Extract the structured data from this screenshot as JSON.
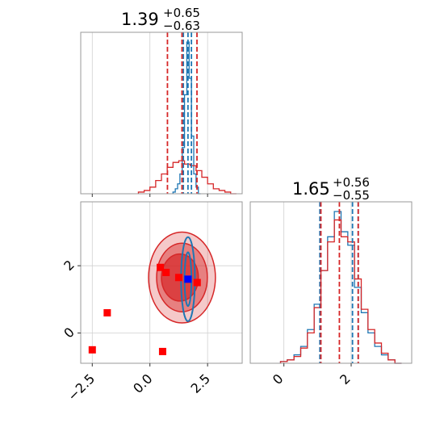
{
  "colors": {
    "blue": "#1f77b4",
    "red": "#d62728",
    "marker_red": "#ff0000",
    "marker_blue": "#0000ff",
    "grid": "#d0d0d0"
  },
  "chart_data": [
    {
      "type": "histogram",
      "panel": "marginal-x",
      "title": {
        "median": "1.39",
        "plus": "+0.65",
        "minus": "−0.63"
      },
      "xlim": [
        -3.0,
        4.0
      ],
      "grid": true,
      "series": [
        {
          "color": "blue",
          "bins_x": [
            1.0,
            1.1,
            1.2,
            1.3,
            1.4,
            1.5,
            1.6,
            1.7,
            1.8,
            1.9,
            2.0,
            2.1
          ],
          "heights": [
            0.01,
            0.03,
            0.06,
            0.12,
            0.28,
            0.6,
            0.92,
            0.7,
            0.35,
            0.12,
            0.04,
            0.0
          ],
          "quantiles": [
            1.45,
            1.65,
            1.8
          ]
        },
        {
          "color": "red",
          "bins_x": [
            -0.5,
            -0.25,
            0.0,
            0.25,
            0.5,
            0.75,
            1.0,
            1.25,
            1.5,
            1.75,
            2.0,
            2.25,
            2.5,
            2.75,
            3.0,
            3.25,
            3.5
          ],
          "heights": [
            0.01,
            0.02,
            0.04,
            0.08,
            0.12,
            0.16,
            0.19,
            0.2,
            0.18,
            0.17,
            0.14,
            0.1,
            0.06,
            0.03,
            0.02,
            0.01,
            0.0
          ],
          "quantiles": [
            0.76,
            1.39,
            2.04
          ]
        }
      ]
    },
    {
      "type": "histogram",
      "panel": "marginal-y",
      "title": {
        "median": "1.65",
        "plus": "+0.56",
        "minus": "−0.55"
      },
      "xlim": [
        -1.0,
        3.8
      ],
      "xticks": [
        "0",
        "2"
      ],
      "grid": true,
      "series": [
        {
          "color": "blue",
          "bins_x": [
            -0.1,
            0.1,
            0.3,
            0.5,
            0.7,
            0.9,
            1.1,
            1.3,
            1.5,
            1.7,
            1.9,
            2.1,
            2.3,
            2.5,
            2.7,
            2.9,
            3.1,
            3.3
          ],
          "heights": [
            0.01,
            0.02,
            0.05,
            0.1,
            0.2,
            0.35,
            0.55,
            0.75,
            0.9,
            0.78,
            0.7,
            0.45,
            0.3,
            0.18,
            0.1,
            0.05,
            0.02,
            0.0
          ],
          "quantiles": [
            1.07,
            2.04,
            2.21
          ]
        },
        {
          "color": "red",
          "bins_x": [
            -0.1,
            0.1,
            0.3,
            0.5,
            0.7,
            0.9,
            1.1,
            1.3,
            1.5,
            1.7,
            1.9,
            2.1,
            2.3,
            2.5,
            2.7,
            2.9,
            3.1,
            3.3
          ],
          "heights": [
            0.01,
            0.02,
            0.04,
            0.09,
            0.18,
            0.33,
            0.55,
            0.72,
            0.85,
            0.75,
            0.72,
            0.5,
            0.32,
            0.2,
            0.12,
            0.06,
            0.02,
            0.0
          ],
          "quantiles": [
            1.1,
            1.65,
            2.21
          ]
        }
      ]
    },
    {
      "type": "scatter",
      "panel": "joint",
      "xlim": [
        -3.0,
        4.0
      ],
      "ylim": [
        -0.9,
        3.9
      ],
      "xticks": [
        "−2.5",
        "0.0",
        "2.5"
      ],
      "yticks": [
        "0",
        "2"
      ],
      "grid": true,
      "red_contours": [
        {
          "level": "outer",
          "cx": 1.39,
          "cy": 1.65,
          "rx": 1.45,
          "ry": 1.35,
          "opacity": 0.25
        },
        {
          "level": "middle",
          "cx": 1.39,
          "cy": 1.65,
          "rx": 1.1,
          "ry": 1.02,
          "opacity": 0.45
        },
        {
          "level": "inner",
          "cx": 1.3,
          "cy": 1.65,
          "rx": 0.8,
          "ry": 0.7,
          "opacity": 0.7
        }
      ],
      "blue_contours": [
        {
          "level": "outer",
          "cx": 1.65,
          "cy": 1.6,
          "rx": 0.3,
          "ry": 1.25
        },
        {
          "level": "inner",
          "cx": 1.65,
          "cy": 1.6,
          "rx": 0.15,
          "ry": 0.8
        }
      ],
      "red_points": [
        {
          "x": 0.45,
          "y": 1.95
        },
        {
          "x": 0.7,
          "y": 1.8
        },
        {
          "x": 1.25,
          "y": 1.65
        },
        {
          "x": 2.05,
          "y": 1.5
        },
        {
          "x": -1.85,
          "y": 0.6
        },
        {
          "x": -2.5,
          "y": -0.5
        },
        {
          "x": 0.55,
          "y": -0.55
        }
      ],
      "blue_points": [
        {
          "x": 1.65,
          "y": 1.6
        }
      ]
    }
  ]
}
